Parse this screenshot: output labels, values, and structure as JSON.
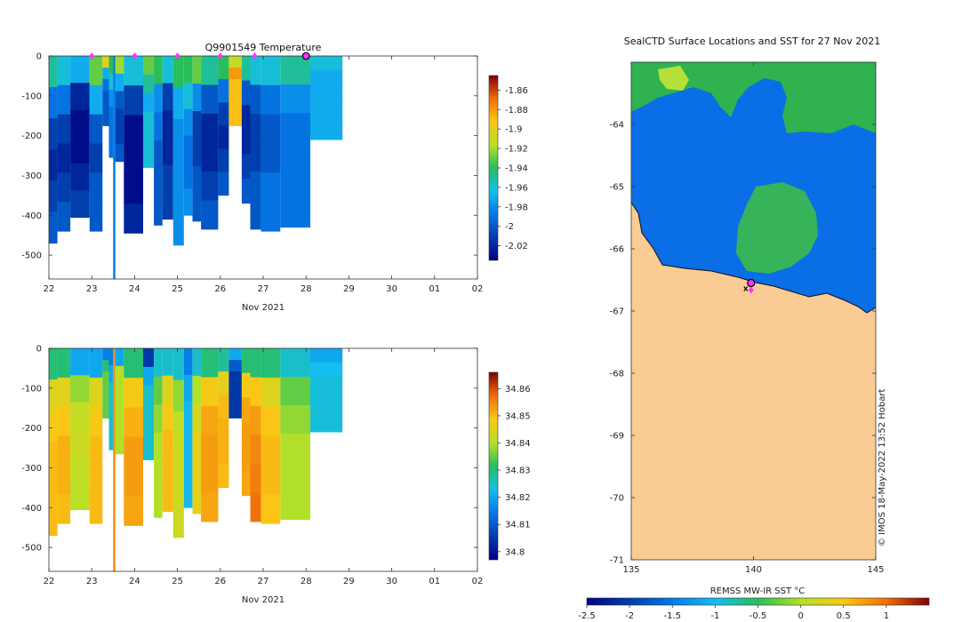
{
  "chart_data": [
    {
      "type": "heatmap",
      "title": "Q9901549  Temperature",
      "xlabel": "Nov 2021",
      "ylabel": "",
      "x_ticks": [
        "22",
        "23",
        "24",
        "25",
        "26",
        "27",
        "28",
        "29",
        "30",
        "01",
        "02"
      ],
      "y_ticks": [
        "0",
        "-100",
        "-200",
        "-300",
        "-400",
        "-500"
      ],
      "xlim": [
        22,
        32
      ],
      "ylim": [
        -560,
        0
      ],
      "colorbar_ticks": [
        "-1.86",
        "-1.88",
        "-1.9",
        "-1.92",
        "-1.94",
        "-1.96",
        "-1.98",
        "-2",
        "-2.02"
      ],
      "colorbar_range": [
        -2.035,
        -1.845
      ],
      "profile_dates": [
        23.0,
        24.0,
        25.0,
        26.0,
        26.8,
        28.0
      ],
      "profiles": [
        {
          "t": 22.0,
          "w": 0.2,
          "depth": 470,
          "values": [
            -1.95,
            -1.99,
            -2.01,
            -2.02,
            -2.01,
            -2.0
          ]
        },
        {
          "t": 22.2,
          "w": 0.3,
          "depth": 440,
          "values": [
            -1.96,
            -1.99,
            -2.01,
            -2.02,
            -2.01,
            -2.0
          ]
        },
        {
          "t": 22.5,
          "w": 0.45,
          "depth": 405,
          "values": [
            -1.97,
            -2.02,
            -2.03,
            -2.03,
            -2.02,
            -2.01
          ]
        },
        {
          "t": 22.95,
          "w": 0.3,
          "depth": 440,
          "values": [
            -1.93,
            -1.97,
            -2.0,
            -2.01,
            -2.0,
            -2.0
          ]
        },
        {
          "t": 23.25,
          "w": 0.15,
          "depth": 175,
          "values": [
            -1.9,
            -1.97,
            -1.99,
            -2.0,
            -2.0,
            -2.0
          ]
        },
        {
          "t": 23.4,
          "w": 0.1,
          "depth": 255,
          "values": [
            -1.94,
            -1.96,
            -1.98,
            -1.99,
            -1.99,
            -1.99
          ]
        },
        {
          "t": 23.5,
          "w": 0.05,
          "depth": 560,
          "values": [
            -1.99,
            -1.99,
            -1.99,
            -1.99,
            -1.99,
            -1.99
          ]
        },
        {
          "t": 23.55,
          "w": 0.2,
          "depth": 265,
          "values": [
            -1.92,
            -1.97,
            -2.0,
            -2.01,
            -2.01,
            -2.0
          ]
        },
        {
          "t": 23.75,
          "w": 0.45,
          "depth": 445,
          "values": [
            -1.96,
            -2.01,
            -2.03,
            -2.03,
            -2.03,
            -2.02
          ]
        },
        {
          "t": 24.2,
          "w": 0.25,
          "depth": 280,
          "values": [
            -1.93,
            -1.95,
            -1.97,
            -1.96,
            -1.96,
            -1.96
          ]
        },
        {
          "t": 24.45,
          "w": 0.2,
          "depth": 425,
          "values": [
            -1.94,
            -1.98,
            -1.99,
            -2.0,
            -2.0,
            -2.0
          ]
        },
        {
          "t": 24.65,
          "w": 0.25,
          "depth": 410,
          "values": [
            -1.96,
            -2.01,
            -2.02,
            -2.02,
            -2.01,
            -2.01
          ]
        },
        {
          "t": 24.9,
          "w": 0.25,
          "depth": 475,
          "values": [
            -1.94,
            -1.97,
            -1.98,
            -1.98,
            -1.98,
            -1.98
          ]
        },
        {
          "t": 25.15,
          "w": 0.2,
          "depth": 400,
          "values": [
            -1.94,
            -1.96,
            -1.98,
            -1.99,
            -1.99,
            -1.98
          ]
        },
        {
          "t": 25.35,
          "w": 0.2,
          "depth": 415,
          "values": [
            -1.93,
            -1.98,
            -2.01,
            -2.01,
            -2.0,
            -2.0
          ]
        },
        {
          "t": 25.55,
          "w": 0.4,
          "depth": 435,
          "values": [
            -1.95,
            -2.0,
            -2.02,
            -2.02,
            -2.01,
            -2.0
          ]
        },
        {
          "t": 25.95,
          "w": 0.25,
          "depth": 350,
          "values": [
            -1.94,
            -1.99,
            -2.01,
            -2.02,
            -2.01,
            -2.0
          ]
        },
        {
          "t": 26.2,
          "w": 0.3,
          "depth": 175,
          "values": [
            -1.91,
            -1.88,
            -1.89,
            -1.89,
            -1.89,
            -1.89
          ]
        },
        {
          "t": 26.5,
          "w": 0.2,
          "depth": 370,
          "values": [
            -1.95,
            -2.0,
            -2.02,
            -2.02,
            -2.01,
            -2.0
          ]
        },
        {
          "t": 26.7,
          "w": 0.25,
          "depth": 435,
          "values": [
            -1.96,
            -2.0,
            -2.01,
            -2.01,
            -2.0,
            -2.0
          ]
        },
        {
          "t": 26.95,
          "w": 0.45,
          "depth": 440,
          "values": [
            -1.96,
            -1.99,
            -2.0,
            -2.0,
            -1.99,
            -1.99
          ]
        },
        {
          "t": 27.4,
          "w": 0.7,
          "depth": 430,
          "values": [
            -1.95,
            -1.98,
            -1.99,
            -1.99,
            -1.99,
            -1.99
          ]
        },
        {
          "t": 28.1,
          "w": 0.75,
          "depth": 210,
          "values": [
            -1.96,
            -1.97,
            -1.97,
            -1.97,
            -1.97,
            -1.97
          ]
        }
      ]
    },
    {
      "type": "heatmap",
      "title": "",
      "xlabel": "Nov 2021",
      "ylabel": "",
      "x_ticks": [
        "22",
        "23",
        "24",
        "25",
        "26",
        "27",
        "28",
        "29",
        "30",
        "01",
        "02"
      ],
      "y_ticks": [
        "0",
        "-100",
        "-200",
        "-300",
        "-400",
        "-500"
      ],
      "xlim": [
        22,
        32
      ],
      "ylim": [
        -560,
        0
      ],
      "colorbar_ticks": [
        "34.86",
        "34.85",
        "34.84",
        "34.83",
        "34.82",
        "34.81",
        "34.8"
      ],
      "colorbar_range": [
        34.797,
        34.866
      ],
      "profiles": [
        {
          "t": 22.0,
          "w": 0.2,
          "depth": 470,
          "values": [
            34.83,
            34.845,
            34.848,
            34.85,
            34.85,
            34.85
          ]
        },
        {
          "t": 22.2,
          "w": 0.3,
          "depth": 440,
          "values": [
            34.83,
            34.846,
            34.849,
            34.851,
            34.851,
            34.85
          ]
        },
        {
          "t": 22.5,
          "w": 0.45,
          "depth": 405,
          "values": [
            34.82,
            34.838,
            34.842,
            34.843,
            34.842,
            34.841
          ]
        },
        {
          "t": 22.95,
          "w": 0.3,
          "depth": 440,
          "values": [
            34.82,
            34.845,
            34.848,
            34.85,
            34.85,
            34.85
          ]
        },
        {
          "t": 23.25,
          "w": 0.15,
          "depth": 175,
          "values": [
            34.815,
            34.83,
            34.835,
            34.835,
            34.835,
            34.835
          ]
        },
        {
          "t": 23.4,
          "w": 0.1,
          "depth": 255,
          "values": [
            34.815,
            34.82,
            34.825,
            34.825,
            34.825,
            34.825
          ]
        },
        {
          "t": 23.5,
          "w": 0.05,
          "depth": 560,
          "values": [
            34.855,
            34.855,
            34.855,
            34.855,
            34.855,
            34.855
          ]
        },
        {
          "t": 23.55,
          "w": 0.2,
          "depth": 265,
          "values": [
            34.82,
            34.84,
            34.84,
            34.84,
            34.84,
            34.84
          ]
        },
        {
          "t": 23.75,
          "w": 0.45,
          "depth": 445,
          "values": [
            34.83,
            34.848,
            34.851,
            34.853,
            34.853,
            34.852
          ]
        },
        {
          "t": 24.2,
          "w": 0.25,
          "depth": 280,
          "values": [
            34.805,
            34.82,
            34.825,
            34.825,
            34.825,
            34.825
          ]
        },
        {
          "t": 24.45,
          "w": 0.2,
          "depth": 425,
          "values": [
            34.825,
            34.835,
            34.838,
            34.84,
            34.84,
            34.84
          ]
        },
        {
          "t": 24.65,
          "w": 0.25,
          "depth": 410,
          "values": [
            34.825,
            34.845,
            34.848,
            34.85,
            34.85,
            34.85
          ]
        },
        {
          "t": 24.9,
          "w": 0.25,
          "depth": 475,
          "values": [
            34.825,
            34.838,
            34.842,
            34.843,
            34.843,
            34.843
          ]
        },
        {
          "t": 25.15,
          "w": 0.2,
          "depth": 400,
          "values": [
            34.815,
            34.82,
            34.822,
            34.822,
            34.822,
            34.822
          ]
        },
        {
          "t": 25.35,
          "w": 0.2,
          "depth": 415,
          "values": [
            34.825,
            34.84,
            34.844,
            34.846,
            34.846,
            34.846
          ]
        },
        {
          "t": 25.55,
          "w": 0.4,
          "depth": 435,
          "values": [
            34.83,
            34.848,
            34.852,
            34.853,
            34.853,
            34.852
          ]
        },
        {
          "t": 25.95,
          "w": 0.25,
          "depth": 350,
          "values": [
            34.828,
            34.846,
            34.85,
            34.851,
            34.851,
            34.85
          ]
        },
        {
          "t": 26.2,
          "w": 0.3,
          "depth": 175,
          "values": [
            34.82,
            34.81,
            34.805,
            34.805,
            34.805,
            34.805
          ]
        },
        {
          "t": 26.5,
          "w": 0.2,
          "depth": 370,
          "values": [
            34.83,
            34.848,
            34.852,
            34.853,
            34.853,
            34.852
          ]
        },
        {
          "t": 26.7,
          "w": 0.25,
          "depth": 435,
          "values": [
            34.83,
            34.849,
            34.853,
            34.855,
            34.856,
            34.857
          ]
        },
        {
          "t": 26.95,
          "w": 0.45,
          "depth": 440,
          "values": [
            34.83,
            34.845,
            34.849,
            34.85,
            34.85,
            34.849
          ]
        },
        {
          "t": 27.4,
          "w": 0.7,
          "depth": 430,
          "values": [
            34.825,
            34.835,
            34.838,
            34.84,
            34.84,
            34.84
          ]
        },
        {
          "t": 28.1,
          "w": 0.75,
          "depth": 210,
          "values": [
            34.82,
            34.823,
            34.824,
            34.824,
            34.824,
            34.824
          ]
        }
      ]
    },
    {
      "type": "heatmap",
      "title": "SealCTD Surface Locations and SST for 27 Nov 2021",
      "xlabel": "",
      "ylabel": "",
      "x_ticks": [
        "135",
        "140",
        "145"
      ],
      "y_ticks": [
        "-64",
        "-65",
        "-66",
        "-67",
        "-68",
        "-69",
        "-70",
        "-71"
      ],
      "xlim": [
        135,
        145
      ],
      "ylim": [
        -71,
        -63
      ],
      "colorbar_label": "REMSS MW-IR SST °C",
      "colorbar_ticks": [
        "-2.5",
        "-2",
        "-1.5",
        "-1",
        "-0.5",
        "0",
        "0.5",
        "1"
      ],
      "colorbar_range": [
        -2.5,
        1.5
      ],
      "fields": {
        "open_water_sst": -1.8,
        "north_band_sst": -1.0,
        "bloom_sst": -1.05,
        "land": "Antarctica"
      },
      "seal_positions": [
        {
          "lon": 139.9,
          "lat": -66.55
        }
      ],
      "credit": "© IMOS 18-May-2022 13:52 Hobart"
    }
  ]
}
